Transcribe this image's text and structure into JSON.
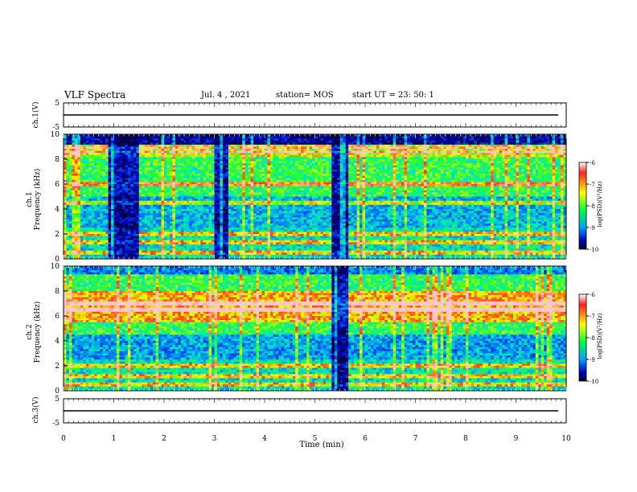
{
  "header": {
    "title": "VLF Spectra",
    "date": "Jul. 4 , 2021",
    "station": "station= MOS",
    "start": "start UT = 23: 50: 1"
  },
  "chart_data": {
    "type": "heatmap",
    "xlabel": "Time (min)",
    "xlim": [
      0,
      10
    ],
    "x_ticks": [
      "0",
      "1",
      "2",
      "3",
      "4",
      "5",
      "6",
      "7",
      "8",
      "9",
      "10"
    ],
    "panels": [
      {
        "id": "ch1-voltage",
        "ylabel": "ch.1(V)",
        "ylim": [
          -5,
          5
        ],
        "y_ticks": [
          "5",
          "-5"
        ],
        "trace_level": 0
      },
      {
        "id": "ch1-spectrogram",
        "ylabel_line1": "ch.1",
        "ylabel_line2": "Frequency (kHz)",
        "ylim": [
          0,
          10
        ],
        "y_ticks": [
          "0",
          "2",
          "4",
          "6",
          "8",
          "10"
        ],
        "colorbar": {
          "label": "log(PSD)(V²/Hz)",
          "range": [
            -10,
            -6
          ],
          "ticks": [
            "-6",
            "-7",
            "-8",
            "-9",
            "-10"
          ]
        },
        "quiet_intervals_min": [
          [
            0.9,
            1.5
          ],
          [
            3.0,
            3.3
          ],
          [
            5.35,
            5.65
          ]
        ],
        "strong_bands_khz": [
          8.6,
          8.9,
          6.0,
          4.5,
          2.0,
          1.3,
          0.5
        ]
      },
      {
        "id": "ch2-spectrogram",
        "ylabel_line1": "ch.2",
        "ylabel_line2": "Frequency (kHz)",
        "ylim": [
          0,
          10
        ],
        "y_ticks": [
          "0",
          "2",
          "4",
          "6",
          "8",
          "10"
        ],
        "colorbar": {
          "label": "log(PSD)(V²/Hz)",
          "range": [
            -10,
            -6
          ],
          "ticks": [
            "-6",
            "-7",
            "-8",
            "-9",
            "-10"
          ]
        },
        "quiet_intervals_min": [
          [
            5.35,
            5.65
          ]
        ],
        "strong_bands_khz": [
          7.0,
          6.5,
          2.0,
          1.2,
          0.5
        ]
      },
      {
        "id": "ch3-voltage",
        "ylabel": "ch.3(V)",
        "ylim": [
          -5,
          5
        ],
        "y_ticks": [
          "5",
          "-5"
        ],
        "trace_level": 0
      }
    ]
  }
}
